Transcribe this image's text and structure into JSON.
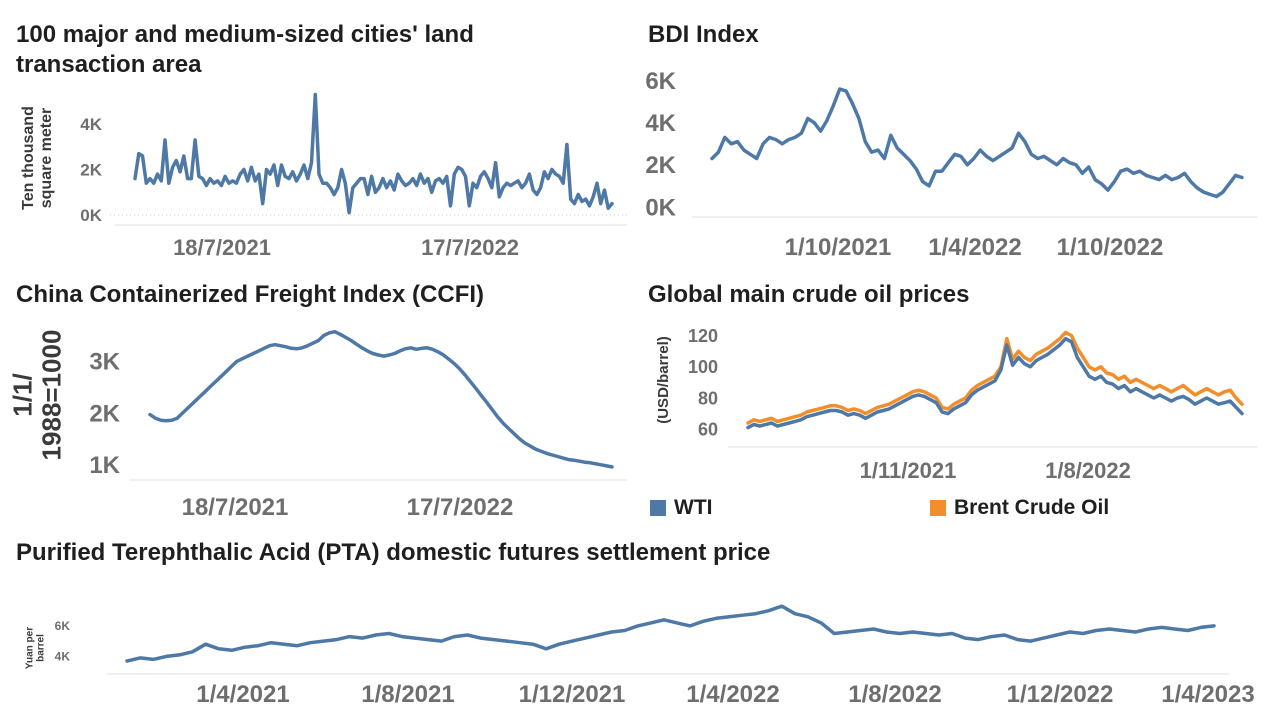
{
  "chart_data": [
    {
      "id": "land",
      "type": "line",
      "title": "100 major and medium-sized cities' land transaction area",
      "title_lines": [
        "100 major and medium-sized cities' land",
        "transaction area"
      ],
      "ylabel": "Ten thousand square meter",
      "ylabel_lines": [
        "Ten thousand",
        "square meter"
      ],
      "xlabel": "",
      "x_ticks": [
        "18/7/2021",
        "17/7/2022"
      ],
      "y_ticks": [
        "0K",
        "2K",
        "4K"
      ],
      "ylim": [
        0,
        5500
      ],
      "grid": false,
      "color": "#4e79a7",
      "series": [
        {
          "values": [
            1600,
            2700,
            2600,
            1400,
            1600,
            1400,
            1800,
            1500,
            3300,
            1400,
            2100,
            2400,
            1900,
            2600,
            1600,
            1600,
            3300,
            1700,
            1600,
            1300,
            1600,
            1400,
            1500,
            1300,
            1700,
            1400,
            1500,
            1400,
            1800,
            2000,
            1500,
            2100,
            1500,
            1800,
            500,
            2000,
            1800,
            2200,
            1300,
            2200,
            1700,
            1600,
            1900,
            1500,
            1800,
            2200,
            1600,
            2300,
            5300,
            1800,
            1400,
            1400,
            1200,
            900,
            1200,
            2000,
            1400,
            100,
            1200,
            1400,
            1600,
            1600,
            900,
            1700,
            1000,
            1200,
            1600,
            1200,
            1500,
            1100,
            1800,
            1500,
            1300,
            1400,
            1600,
            1300,
            1800,
            1400,
            1600,
            1000,
            1500,
            1600,
            1400,
            1700,
            400,
            1800,
            2100,
            2000,
            1700,
            400,
            1400,
            1200,
            1700,
            1900,
            1600,
            1200,
            2300,
            800,
            1200,
            1400,
            1300,
            1400,
            1500,
            1200,
            1400,
            1800,
            1100,
            900,
            1200,
            1900,
            1600,
            2000,
            1800,
            1700,
            1400,
            3100,
            700,
            500,
            900,
            600,
            700,
            400,
            800,
            1400,
            500,
            1100,
            300,
            500
          ]
        }
      ]
    },
    {
      "id": "bdi",
      "type": "line",
      "title": "BDI Index",
      "ylabel": "",
      "xlabel": "",
      "x_ticks": [
        "1/10/2021",
        "1/4/2022",
        "1/10/2022"
      ],
      "y_ticks": [
        "0K",
        "2K",
        "4K",
        "6K"
      ],
      "ylim": [
        0,
        6500
      ],
      "grid": false,
      "color": "#4e79a7",
      "series": [
        {
          "values": [
            2300,
            2600,
            3300,
            3000,
            3100,
            2700,
            2500,
            2300,
            3000,
            3300,
            3200,
            3000,
            3200,
            3300,
            3500,
            4200,
            4000,
            3600,
            4100,
            4800,
            5600,
            5500,
            4900,
            4200,
            3100,
            2600,
            2700,
            2300,
            3400,
            2800,
            2500,
            2200,
            1800,
            1200,
            1000,
            1700,
            1700,
            2100,
            2500,
            2400,
            2000,
            2300,
            2700,
            2400,
            2200,
            2400,
            2600,
            2800,
            3500,
            3100,
            2500,
            2300,
            2400,
            2200,
            2000,
            2300,
            2100,
            2000,
            1600,
            1900,
            1300,
            1100,
            800,
            1200,
            1700,
            1800,
            1600,
            1700,
            1500,
            1400,
            1300,
            1500,
            1300,
            1400,
            1600,
            1200,
            900,
            700,
            600,
            500,
            700,
            1100,
            1500,
            1400
          ]
        }
      ]
    },
    {
      "id": "ccfi",
      "type": "line",
      "title": "China Containerized Freight Index (CCFI)",
      "ylabel": "1/1/1988=1000",
      "ylabel_lines": [
        "1/1/",
        "1988=1000"
      ],
      "xlabel": "",
      "x_ticks": [
        "18/7/2021",
        "17/7/2022"
      ],
      "y_ticks": [
        "1K",
        "2K",
        "3K"
      ],
      "ylim": [
        900,
        3700
      ],
      "grid": false,
      "color": "#4e79a7",
      "series": [
        {
          "values": [
            1970,
            1900,
            1860,
            1850,
            1860,
            1900,
            2000,
            2100,
            2200,
            2300,
            2400,
            2500,
            2600,
            2700,
            2800,
            2900,
            3000,
            3050,
            3100,
            3150,
            3200,
            3250,
            3300,
            3320,
            3300,
            3280,
            3250,
            3240,
            3260,
            3300,
            3350,
            3400,
            3500,
            3550,
            3570,
            3520,
            3460,
            3400,
            3330,
            3260,
            3200,
            3150,
            3120,
            3100,
            3120,
            3150,
            3200,
            3240,
            3260,
            3230,
            3250,
            3260,
            3230,
            3180,
            3120,
            3040,
            2950,
            2850,
            2730,
            2600,
            2470,
            2330,
            2200,
            2060,
            1920,
            1800,
            1700,
            1600,
            1500,
            1420,
            1360,
            1300,
            1260,
            1220,
            1190,
            1160,
            1130,
            1100,
            1090,
            1070,
            1050,
            1040,
            1020,
            1000,
            980,
            960
          ]
        }
      ]
    },
    {
      "id": "oil",
      "type": "line",
      "title": "Global main crude oil prices",
      "ylabel": "(USD/barrel)",
      "xlabel": "",
      "x_ticks": [
        "1/11/2021",
        "1/8/2022"
      ],
      "y_ticks": [
        "60",
        "80",
        "100",
        "120"
      ],
      "ylim": [
        55,
        130
      ],
      "grid": false,
      "legend": "bottom",
      "series": [
        {
          "name": "Brent Crude Oil",
          "color": "#f28e2b",
          "values": [
            64,
            66,
            65,
            66,
            67,
            65,
            66,
            67,
            68,
            69,
            71,
            72,
            73,
            74,
            75,
            75,
            74,
            72,
            73,
            72,
            70,
            72,
            74,
            75,
            76,
            78,
            80,
            82,
            84,
            85,
            84,
            82,
            80,
            74,
            73,
            76,
            78,
            80,
            85,
            88,
            90,
            92,
            94,
            100,
            118,
            105,
            110,
            106,
            104,
            108,
            110,
            112,
            115,
            118,
            122,
            120,
            112,
            106,
            100,
            98,
            100,
            96,
            95,
            92,
            94,
            90,
            92,
            90,
            88,
            86,
            88,
            86,
            84,
            86,
            88,
            85,
            82,
            84,
            86,
            84,
            82,
            84,
            85,
            80,
            76
          ]
        },
        {
          "name": "WTI",
          "color": "#4e79a7",
          "values": [
            61,
            63,
            62,
            63,
            64,
            62,
            63,
            64,
            65,
            66,
            68,
            69,
            70,
            71,
            72,
            72,
            71,
            69,
            70,
            69,
            67,
            69,
            71,
            72,
            73,
            75,
            77,
            79,
            81,
            82,
            81,
            79,
            77,
            71,
            70,
            73,
            75,
            77,
            82,
            85,
            87,
            89,
            91,
            98,
            114,
            101,
            106,
            102,
            100,
            104,
            106,
            108,
            111,
            114,
            118,
            116,
            106,
            100,
            94,
            92,
            94,
            90,
            89,
            86,
            88,
            84,
            86,
            84,
            82,
            80,
            82,
            80,
            78,
            80,
            81,
            79,
            76,
            78,
            80,
            78,
            76,
            77,
            78,
            74,
            70
          ]
        }
      ]
    },
    {
      "id": "pta",
      "type": "line",
      "title": "Purified Terephthalic Acid (PTA) domestic futures settlement price",
      "ylabel": "Yuan per barrel",
      "ylabel_lines": [
        "Yuan per",
        "barrel"
      ],
      "xlabel": "",
      "x_ticks": [
        "1/4/2021",
        "1/8/2021",
        "1/12/2021",
        "1/4/2022",
        "1/8/2022",
        "1/12/2022",
        "1/4/2023"
      ],
      "y_ticks": [
        "4K",
        "6K"
      ],
      "ylim": [
        3500,
        7700
      ],
      "grid": false,
      "color": "#4e79a7",
      "series": [
        {
          "values": [
            3700,
            3900,
            3800,
            4000,
            4100,
            4300,
            4800,
            4500,
            4400,
            4600,
            4700,
            4900,
            4800,
            4700,
            4900,
            5000,
            5100,
            5300,
            5200,
            5400,
            5500,
            5300,
            5200,
            5100,
            5000,
            5300,
            5400,
            5200,
            5100,
            5000,
            4900,
            4800,
            4500,
            4800,
            5000,
            5200,
            5400,
            5600,
            5700,
            6000,
            6200,
            6400,
            6200,
            6000,
            6300,
            6500,
            6600,
            6700,
            6800,
            7000,
            7300,
            6800,
            6600,
            6200,
            5500,
            5600,
            5700,
            5800,
            5600,
            5500,
            5600,
            5500,
            5400,
            5500,
            5200,
            5100,
            5300,
            5400,
            5100,
            5000,
            5200,
            5400,
            5600,
            5500,
            5700,
            5800,
            5700,
            5600,
            5800,
            5900,
            5800,
            5700,
            5900,
            6000
          ]
        }
      ]
    }
  ]
}
